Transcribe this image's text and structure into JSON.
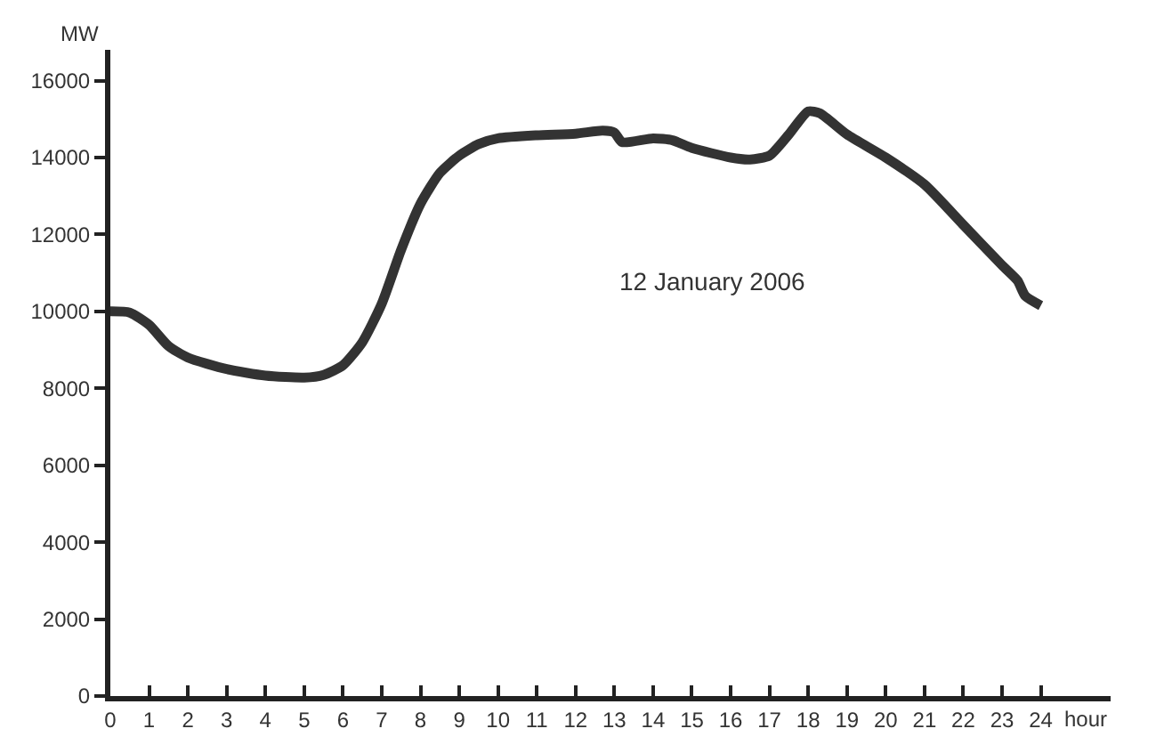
{
  "chart_data": {
    "type": "line",
    "xlabel": "hour",
    "ylabel": "MW",
    "annotations": [
      "12 January 2006"
    ],
    "x": [
      0,
      0.5,
      1,
      1.5,
      2,
      3,
      4,
      5,
      5.5,
      6,
      6.5,
      7,
      7.5,
      8,
      8.5,
      9,
      9.5,
      10,
      11,
      12,
      12.7,
      13,
      13.2,
      14,
      14.5,
      15,
      16,
      16.5,
      17,
      17.5,
      18,
      18.3,
      19,
      20,
      21,
      22,
      23,
      23.4,
      23.6,
      24
    ],
    "series": [
      {
        "color": "#333333",
        "values": [
          10000,
          9970,
          9650,
          9100,
          8800,
          8500,
          8330,
          8280,
          8350,
          8600,
          9200,
          10200,
          11600,
          12800,
          13600,
          14050,
          14350,
          14500,
          14580,
          14620,
          14700,
          14650,
          14400,
          14500,
          14450,
          14250,
          14000,
          13950,
          14050,
          14600,
          15200,
          15150,
          14600,
          14000,
          13300,
          12250,
          11200,
          10800,
          10400,
          10150
        ]
      }
    ],
    "xlim": [
      0,
      25.8
    ],
    "ylim": [
      0,
      16800
    ],
    "xticks": [
      0,
      1,
      2,
      3,
      4,
      5,
      6,
      7,
      8,
      9,
      10,
      11,
      12,
      13,
      14,
      15,
      16,
      17,
      18,
      19,
      20,
      21,
      22,
      23,
      24
    ],
    "yticks": [
      0,
      2000,
      4000,
      6000,
      8000,
      10000,
      12000,
      14000,
      16000
    ],
    "marker": "none",
    "line_style": "solid"
  }
}
